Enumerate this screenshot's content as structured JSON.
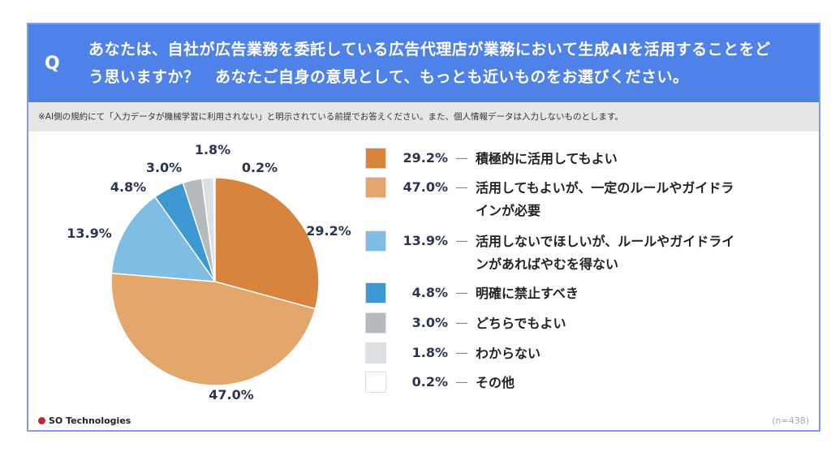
{
  "header": {
    "q_mark": "Q",
    "question": "あなたは、自社が広告業務を委託している広告代理店が業務において生成AIを活用することをどう思いますか？　あなたご自身の意見として、もっとも近いものをお選びください。"
  },
  "note": "※AI側の規約にて「入力データが機械学習に利用されない」と明示されている前提でお答えください。また、個人情報データは入力しないものとします。",
  "footer": {
    "brand": "SO Technologies",
    "sample": "(n=438)"
  },
  "chart_data": {
    "type": "pie",
    "start": "12 o'clock, clockwise",
    "legend_position": "right",
    "slices": [
      {
        "label": "積極的に活用してもよい",
        "value": 29.2,
        "display": "29.2%",
        "color": "#d8843d"
      },
      {
        "label": "活用してもよいが、一定のルールやガイドラインが必要",
        "value": 47.0,
        "display": "47.0%",
        "color": "#e3a66b"
      },
      {
        "label": "活用しないでほしいが、ルールやガイドラインがあればやむを得ない",
        "value": 13.9,
        "display": "13.9%",
        "color": "#80bde2"
      },
      {
        "label": "明確に禁止すべき",
        "value": 4.8,
        "display": "4.8%",
        "color": "#3e98d1"
      },
      {
        "label": "どちらでもよい",
        "value": 3.0,
        "display": "3.0%",
        "color": "#b5babe"
      },
      {
        "label": "わからない",
        "value": 1.8,
        "display": "1.8%",
        "color": "#dce0e3"
      },
      {
        "label": "その他",
        "value": 0.2,
        "display": "0.2%",
        "color": "#ffffff"
      }
    ]
  }
}
